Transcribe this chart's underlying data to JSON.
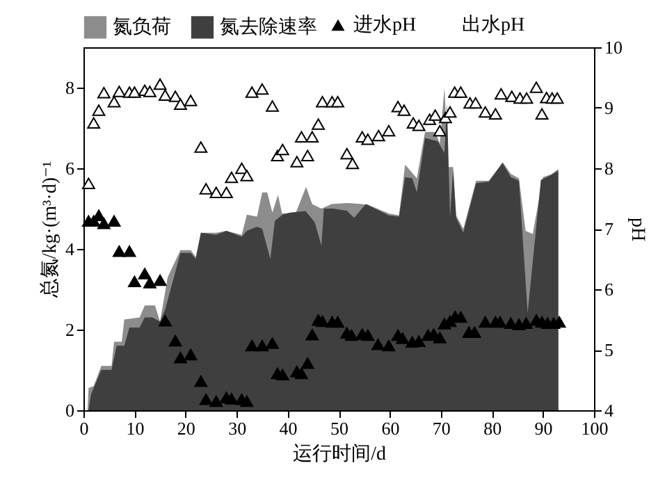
{
  "chart_data": {
    "type": "area",
    "xlabel": "运行时间/d",
    "ylabel": "总氮/kg·(m³·d)⁻¹",
    "y2label": "pH",
    "xlim": [
      0,
      100
    ],
    "xticks": [
      0,
      10,
      20,
      30,
      40,
      50,
      60,
      70,
      80,
      90,
      100
    ],
    "ylim": [
      0,
      9
    ],
    "yticks": [
      0,
      2,
      4,
      6,
      8
    ],
    "y2lim": [
      4,
      10
    ],
    "y2ticks": [
      4,
      5,
      6,
      7,
      8,
      9,
      10
    ],
    "legend": "top",
    "series": [
      {
        "name": "氮负荷",
        "color": "#8c8c8c",
        "x": [
          0.8,
          1,
          2,
          3.5,
          5.5,
          6,
          7.5,
          8,
          11,
          12,
          14,
          15,
          16.5,
          19,
          21,
          22,
          23,
          26,
          28,
          31,
          32,
          34,
          35,
          36,
          37,
          38.1,
          38.9,
          41.6,
          43.6,
          44.8,
          46.6,
          48.6,
          51.6,
          55.7,
          59.8,
          61.8,
          63,
          65.3,
          66.9,
          68.9,
          69.8,
          70.7,
          71.5,
          72.4,
          73,
          74.4,
          76.9,
          79.4,
          82.1,
          83.7,
          85.3,
          86.6,
          88,
          90,
          91.6,
          93,
          93.01
        ],
        "values": [
          0,
          0.55,
          0.6,
          1.1,
          1.1,
          1.7,
          1.7,
          2.25,
          2.3,
          2.6,
          2.6,
          2.2,
          3.3,
          3.97,
          3.97,
          3.8,
          4.4,
          4.4,
          4.45,
          4.35,
          4.85,
          4.8,
          5.4,
          5.4,
          4.9,
          5.34,
          4.88,
          4.9,
          5.54,
          5.11,
          5.0,
          5.11,
          5.14,
          5.1,
          4.88,
          4.83,
          6.09,
          5.75,
          6.9,
          6.9,
          6.61,
          8.0,
          6.03,
          6.03,
          4.83,
          4.5,
          5.69,
          5.69,
          6.15,
          5.86,
          5.75,
          4.45,
          4.37,
          5.78,
          5.85,
          5.98,
          0
        ]
      },
      {
        "name": "氮去除速率",
        "color": "#3f3f3f",
        "x": [
          1,
          1.5,
          3.5,
          5.5,
          6.5,
          8,
          9,
          11,
          12,
          13.5,
          15,
          16,
          17.5,
          19,
          21,
          22,
          23,
          26,
          28,
          31,
          32,
          34,
          35,
          36.6,
          37.5,
          39,
          40.5,
          43.5,
          45.3,
          46.6,
          47.1,
          48.9,
          51.6,
          53,
          55.3,
          59.8,
          61.8,
          63,
          64.4,
          65.3,
          66.9,
          69.4,
          70.7,
          71.2,
          71.8,
          72.4,
          73,
          74.4,
          76.9,
          79.4,
          82.1,
          83.7,
          85.3,
          87,
          89.6,
          91.6,
          93,
          93.01
        ],
        "values": [
          0,
          0.4,
          1.0,
          1.0,
          1.6,
          1.6,
          2.05,
          2.05,
          2.3,
          2.3,
          2.2,
          2.5,
          3.2,
          3.9,
          3.9,
          3.75,
          4.4,
          4.35,
          4.45,
          4.3,
          4.45,
          4.55,
          4.5,
          3.75,
          4.7,
          4.85,
          4.9,
          4.94,
          4.66,
          4.08,
          5.0,
          5.0,
          4.95,
          4.77,
          5.11,
          4.83,
          4.8,
          5.78,
          5.75,
          5.4,
          6.75,
          6.67,
          6.38,
          7.6,
          4.77,
          5.98,
          4.77,
          4.4,
          5.63,
          5.67,
          6.13,
          5.78,
          5.69,
          2.41,
          5.71,
          5.83,
          5.94,
          0
        ]
      },
      {
        "name": "进水pH",
        "type": "scatter",
        "axis": "y2",
        "marker": "triangle",
        "color": "#000000",
        "x": [
          1,
          2,
          3,
          4,
          6,
          7,
          9,
          10,
          12,
          13,
          15,
          16,
          18,
          19,
          21,
          23,
          24,
          26,
          28,
          29,
          31,
          32,
          33,
          35,
          37,
          38,
          39,
          41.8,
          42.7,
          43.9,
          44.8,
          46,
          46.8,
          48.7,
          49.8,
          51.6,
          52.5,
          54.6,
          55.7,
          57.7,
          59.8,
          61.6,
          62.5,
          64.4,
          65.7,
          67.5,
          68.6,
          69.8,
          70.7,
          71.8,
          72.8,
          73.9,
          75.5,
          76.6,
          78.7,
          80.7,
          81.6,
          83.7,
          85.3,
          86.7,
          88.7,
          89.8,
          90.9,
          92.1,
          93.2
        ],
        "values": [
          7.13,
          7.13,
          7.22,
          7.09,
          7.13,
          6.63,
          6.63,
          6.13,
          6.26,
          6.11,
          6.15,
          5.48,
          5.15,
          4.87,
          4.92,
          4.48,
          4.18,
          4.15,
          4.21,
          4.19,
          4.18,
          4.15,
          5.07,
          5.07,
          5.11,
          4.61,
          4.59,
          4.64,
          4.61,
          4.78,
          5.25,
          5.49,
          5.47,
          5.46,
          5.46,
          5.28,
          5.24,
          5.26,
          5.24,
          5.09,
          5.07,
          5.24,
          5.19,
          5.13,
          5.14,
          5.24,
          5.26,
          5.2,
          5.43,
          5.47,
          5.55,
          5.54,
          5.29,
          5.29,
          5.46,
          5.46,
          5.46,
          5.44,
          5.42,
          5.44,
          5.49,
          5.46,
          5.44,
          5.44,
          5.46
        ]
      },
      {
        "name": "出水pH",
        "type": "scatter",
        "axis": "y2",
        "marker": "triangle",
        "color": "#ffffff",
        "x": [
          1,
          2,
          3,
          4,
          6,
          7,
          9,
          10,
          12,
          13,
          15,
          16,
          18,
          19,
          21,
          23,
          24,
          26,
          28,
          29,
          31,
          32,
          33,
          35,
          37,
          38,
          39,
          41.8,
          42.7,
          43.9,
          44.8,
          46,
          46.8,
          48.7,
          49.8,
          51.6,
          52.7,
          54.6,
          55.7,
          57.8,
          59.8,
          61.6,
          62.8,
          64.6,
          65.7,
          67.8,
          68.9,
          69.8,
          70.9,
          71.8,
          72.7,
          73.9,
          75.7,
          76.8,
          78.7,
          80.7,
          81.8,
          83.9,
          85.5,
          86.8,
          88.7,
          89.8,
          90.7,
          91.8,
          92.8
        ],
        "values": [
          7.75,
          8.75,
          8.96,
          9.25,
          9.1,
          9.27,
          9.26,
          9.26,
          9.29,
          9.27,
          9.39,
          9.21,
          9.19,
          9.06,
          9.12,
          8.35,
          7.66,
          7.6,
          7.6,
          7.85,
          8.0,
          7.88,
          9.26,
          9.31,
          9.03,
          8.21,
          8.31,
          8.11,
          8.52,
          8.21,
          8.52,
          8.73,
          9.1,
          9.1,
          9.1,
          8.24,
          8.08,
          8.52,
          8.48,
          8.54,
          8.62,
          9.02,
          8.96,
          8.75,
          8.71,
          8.81,
          8.88,
          8.62,
          8.84,
          8.93,
          9.26,
          9.26,
          9.08,
          9.08,
          8.93,
          8.9,
          9.23,
          9.19,
          9.16,
          9.16,
          9.34,
          8.9,
          9.17,
          9.16,
          9.16
        ]
      }
    ]
  }
}
